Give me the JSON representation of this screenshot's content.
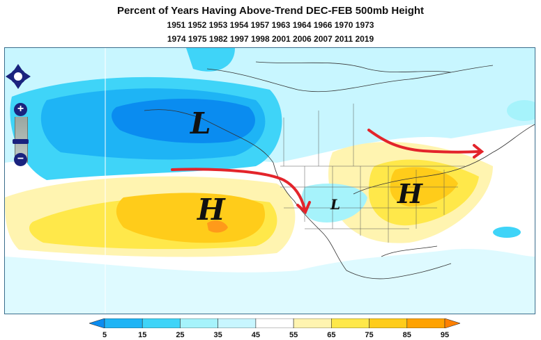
{
  "title": {
    "main": "Percent of Years Having Above-Trend DEC-FEB 500mb Height",
    "years_line1": "1951 1952 1953 1954 1957 1963 1964 1966 1970 1973",
    "years_line2": "1974 1975 1982 1997 1998 2001 2006 2007 2011 2019"
  },
  "map_labels": {
    "low_large": "L",
    "high_pacific": "H",
    "low_small": "L",
    "high_east": "H"
  },
  "colorbar": {
    "ticks": [
      "5",
      "15",
      "25",
      "35",
      "45",
      "55",
      "65",
      "75",
      "85",
      "95"
    ],
    "colors": [
      "#0a8cf0",
      "#1eb4f5",
      "#3fd4f8",
      "#a6f3fb",
      "#c8f6ff",
      "#ffffff",
      "#fff4b0",
      "#ffe84a",
      "#ffcc1a",
      "#ffa200",
      "#ff8000"
    ]
  },
  "controls": {
    "pan": "pan-control",
    "zoom_in": "+",
    "zoom_out": "−"
  },
  "colors": {
    "arrow": "#e3242b",
    "frame": "#3a6d8c",
    "nav": "#1a237e"
  }
}
